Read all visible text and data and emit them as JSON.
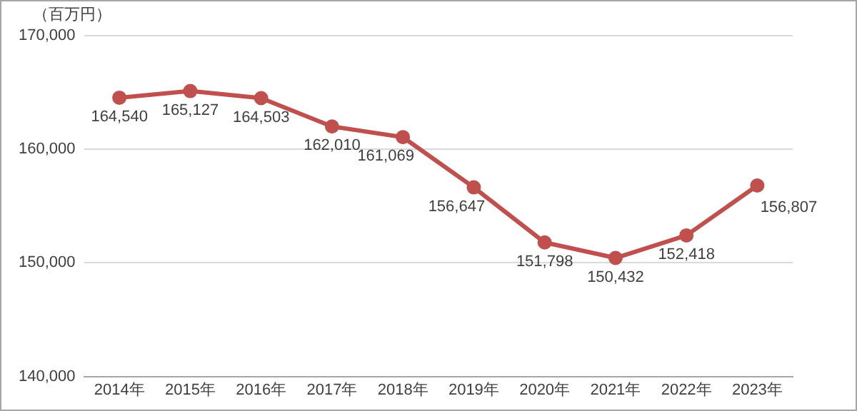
{
  "chart_data": {
    "type": "line",
    "ylabel": "（百万円）",
    "categories": [
      "2014年",
      "2015年",
      "2016年",
      "2017年",
      "2018年",
      "2019年",
      "2020年",
      "2021年",
      "2022年",
      "2023年"
    ],
    "series": [
      {
        "color": "#c0504d",
        "values": [
          164540,
          165127,
          164503,
          162010,
          161069,
          156647,
          151798,
          150432,
          152418,
          156807
        ],
        "value_labels": [
          "164,540",
          "165,127",
          "164,503",
          "162,010",
          "161,069",
          "156,647",
          "151,798",
          "150,432",
          "152,418",
          "156,807"
        ]
      }
    ],
    "ylim": [
      140000,
      170000
    ],
    "yticks": [
      {
        "value": 140000,
        "label": "140,000"
      },
      {
        "value": 150000,
        "label": "150,000"
      },
      {
        "value": 160000,
        "label": "160,000"
      },
      {
        "value": 170000,
        "label": "170,000"
      }
    ],
    "grid": "y",
    "legend": false,
    "marker": "circle",
    "line_style": "solid"
  }
}
